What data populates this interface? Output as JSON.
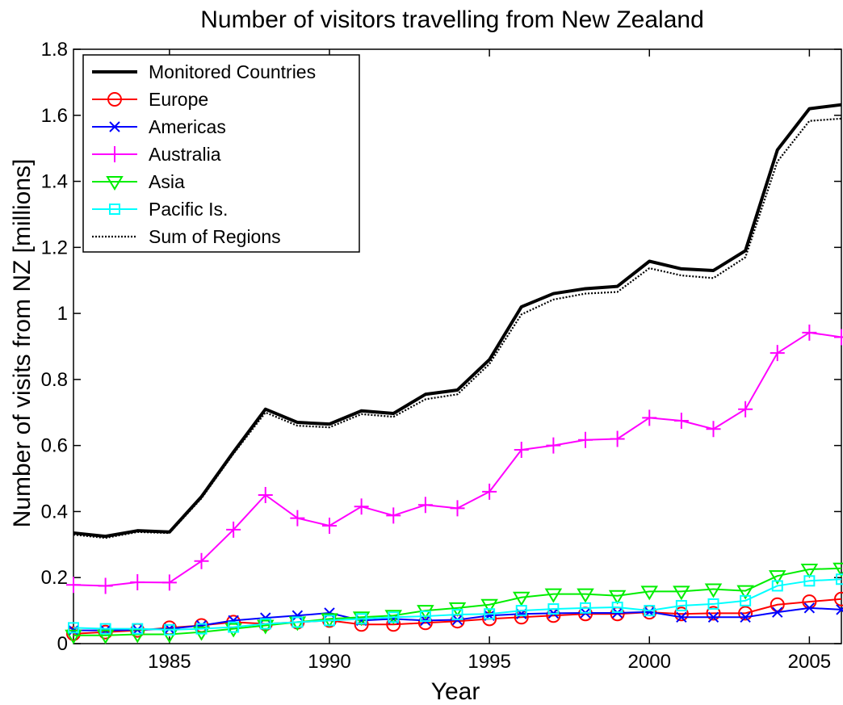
{
  "chart_data": {
    "type": "line",
    "title": "Number of visitors travelling from New Zealand",
    "xlabel": "Year",
    "ylabel": "Number of visits from NZ [millions]",
    "xlim": [
      1982,
      2006
    ],
    "ylim": [
      0,
      1.8
    ],
    "xticks": [
      "1985",
      "1990",
      "1995",
      "2000",
      "2005"
    ],
    "yticks": [
      "0",
      "0.2",
      "0.4",
      "0.6",
      "0.8",
      "1",
      "1.2",
      "1.4",
      "1.6",
      "1.8"
    ],
    "grid": false,
    "legend_position": "top-left",
    "x": [
      1982,
      1983,
      1984,
      1985,
      1986,
      1987,
      1988,
      1989,
      1990,
      1991,
      1992,
      1993,
      1994,
      1995,
      1996,
      1997,
      1998,
      1999,
      2000,
      2001,
      2002,
      2003,
      2004,
      2005,
      2006
    ],
    "series": [
      {
        "name": "Monitored Countries",
        "color": "#000000",
        "marker": "none",
        "style": "solid-thick",
        "values": [
          0.335,
          0.325,
          0.342,
          0.338,
          0.445,
          0.58,
          0.71,
          0.67,
          0.665,
          0.705,
          0.697,
          0.755,
          0.768,
          0.86,
          1.02,
          1.06,
          1.075,
          1.082,
          1.158,
          1.135,
          1.13,
          1.19,
          1.495,
          1.62,
          1.632
        ]
      },
      {
        "name": "Europe",
        "color": "#ff0000",
        "marker": "circle",
        "style": "solid",
        "values": [
          0.03,
          0.035,
          0.04,
          0.048,
          0.055,
          0.065,
          0.06,
          0.065,
          0.07,
          0.058,
          0.058,
          0.063,
          0.068,
          0.075,
          0.08,
          0.085,
          0.09,
          0.09,
          0.095,
          0.09,
          0.092,
          0.092,
          0.118,
          0.127,
          0.135
        ]
      },
      {
        "name": "Americas",
        "color": "#0000ff",
        "marker": "x",
        "style": "solid",
        "values": [
          0.04,
          0.04,
          0.042,
          0.045,
          0.055,
          0.07,
          0.078,
          0.085,
          0.093,
          0.07,
          0.075,
          0.07,
          0.072,
          0.085,
          0.09,
          0.092,
          0.093,
          0.093,
          0.096,
          0.08,
          0.08,
          0.08,
          0.095,
          0.108,
          0.103
        ]
      },
      {
        "name": "Australia",
        "color": "#ff00ff",
        "marker": "plus",
        "style": "solid",
        "values": [
          0.178,
          0.175,
          0.186,
          0.185,
          0.25,
          0.345,
          0.45,
          0.38,
          0.357,
          0.415,
          0.388,
          0.42,
          0.41,
          0.46,
          0.587,
          0.6,
          0.617,
          0.62,
          0.684,
          0.675,
          0.65,
          0.71,
          0.88,
          0.942,
          0.928
        ]
      },
      {
        "name": "Asia",
        "color": "#00ee00",
        "marker": "triangle-down",
        "style": "solid",
        "values": [
          0.025,
          0.025,
          0.028,
          0.028,
          0.035,
          0.045,
          0.055,
          0.065,
          0.075,
          0.08,
          0.085,
          0.1,
          0.108,
          0.118,
          0.14,
          0.15,
          0.15,
          0.145,
          0.158,
          0.158,
          0.165,
          0.16,
          0.205,
          0.225,
          0.228
        ]
      },
      {
        "name": "Pacific Is.",
        "color": "#00ffff",
        "marker": "square",
        "style": "solid",
        "values": [
          0.048,
          0.045,
          0.045,
          0.042,
          0.045,
          0.05,
          0.06,
          0.065,
          0.07,
          0.075,
          0.08,
          0.083,
          0.088,
          0.09,
          0.1,
          0.105,
          0.108,
          0.11,
          0.1,
          0.115,
          0.12,
          0.13,
          0.175,
          0.19,
          0.195
        ]
      },
      {
        "name": "Sum of Regions",
        "color": "#000000",
        "marker": "none",
        "style": "dotted",
        "values": [
          0.33,
          0.32,
          0.338,
          0.335,
          0.44,
          0.575,
          0.7,
          0.66,
          0.655,
          0.695,
          0.687,
          0.74,
          0.755,
          0.847,
          0.997,
          1.042,
          1.06,
          1.065,
          1.137,
          1.115,
          1.107,
          1.17,
          1.46,
          1.583,
          1.59
        ]
      }
    ]
  }
}
